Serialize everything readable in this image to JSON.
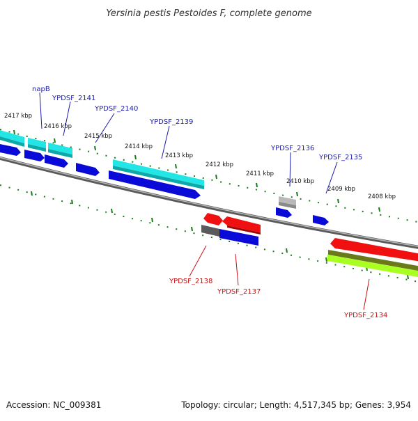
{
  "title": "Yersinia pestis Pestoides F, complete genome",
  "footer": {
    "accession": "Accession: NC_009381",
    "stats": "Topology: circular; Length: 4,517,345 bp; Genes: 3,954"
  },
  "ruler_labels": [
    "2417 kbp",
    "2416 kbp",
    "2415 kbp",
    "2414 kbp",
    "2413 kbp",
    "2412 kbp",
    "2411 kbp",
    "2410 kbp",
    "2409 kbp",
    "2408 kbp"
  ],
  "gene_labels": {
    "top": [
      "napB",
      "YPDSF_2141",
      "YPDSF_2140",
      "YPDSF_2139",
      "YPDSF_2136",
      "YPDSF_2135"
    ],
    "bottom": [
      "YPDSF_2138",
      "YPDSF_2137",
      "YPDSF_2134"
    ]
  },
  "colors": {
    "cds_blue": "#0a0ad8",
    "rna_cyan": "#22e6e6",
    "cds_red": "#f01010",
    "gray": "#888888",
    "olive": "#6a7a1a",
    "lime": "#aaff22",
    "tick_green": "#1a7a1a",
    "label_top": "#1a1aaa",
    "label_bottom": "#cc1111"
  }
}
